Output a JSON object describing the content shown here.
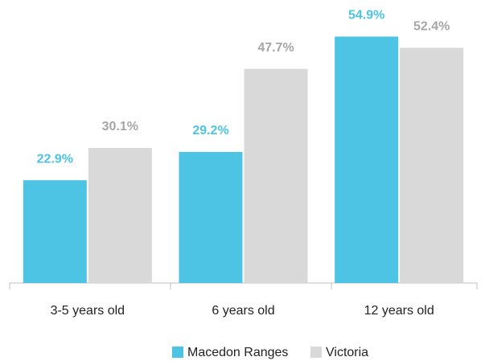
{
  "chart_data": {
    "type": "bar",
    "categories": [
      "3-5 years old",
      "6 years old",
      "12 years old"
    ],
    "series": [
      {
        "name": "Macedon Ranges",
        "color": "#4dc4e4",
        "label_color": "#4dc4e4",
        "values": [
          22.9,
          29.2,
          54.9
        ],
        "value_labels": [
          "22.9%",
          "29.2%",
          "54.9%"
        ]
      },
      {
        "name": "Victoria",
        "color": "#d9d9d9",
        "label_color": "#a6a6a6",
        "values": [
          30.1,
          47.7,
          52.4
        ],
        "value_labels": [
          "30.1%",
          "47.7%",
          "52.4%"
        ]
      }
    ],
    "ylim": [
      0,
      60
    ],
    "legend": "bottom"
  }
}
